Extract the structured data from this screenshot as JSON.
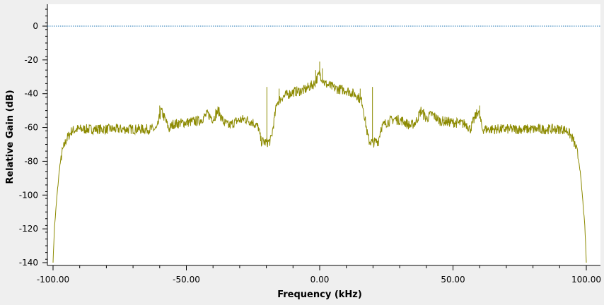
{
  "chart_data": {
    "type": "line",
    "title": "",
    "xlabel": "Frequency (kHz)",
    "ylabel": "Relative Gain (dB)",
    "xlim": [
      -100,
      100
    ],
    "ylim": [
      -140,
      13
    ],
    "x_ticks": [
      -100,
      -50,
      0,
      50,
      100
    ],
    "x_tick_labels": [
      "-100.00",
      "-50.00",
      "0.00",
      "50.00",
      "100.00"
    ],
    "y_ticks": [
      0,
      -20,
      -40,
      -60,
      -80,
      -100,
      -120,
      -140
    ],
    "y_tick_labels": [
      "0",
      "-20",
      "-40",
      "-60",
      "-80",
      "-100",
      "-120",
      "-140"
    ],
    "grid": false,
    "legend": "none",
    "reference_line": {
      "y": 0,
      "color": "#1f77b4",
      "style": "dotted"
    },
    "series": [
      {
        "color": "#8c8a00",
        "envelope": [
          [
            -100,
            -140
          ],
          [
            -99.5,
            -120
          ],
          [
            -98.5,
            -100
          ],
          [
            -97.5,
            -83
          ],
          [
            -96.5,
            -74
          ],
          [
            -95,
            -67
          ],
          [
            -93,
            -62
          ],
          [
            -91,
            -61
          ],
          [
            -85,
            -61
          ],
          [
            -75,
            -61
          ],
          [
            -65,
            -61
          ],
          [
            -61,
            -61
          ],
          [
            -59.5,
            -50
          ],
          [
            -58,
            -55
          ],
          [
            -56.5,
            -61
          ],
          [
            -55,
            -58
          ],
          [
            -50,
            -57
          ],
          [
            -45,
            -56
          ],
          [
            -42,
            -52
          ],
          [
            -40,
            -55
          ],
          [
            -38,
            -50
          ],
          [
            -36,
            -57
          ],
          [
            -34,
            -59
          ],
          [
            -31,
            -56
          ],
          [
            -28,
            -55
          ],
          [
            -25,
            -57
          ],
          [
            -23,
            -60
          ],
          [
            -22,
            -68
          ],
          [
            -20,
            -69
          ],
          [
            -18.5,
            -68
          ],
          [
            -18,
            -65
          ],
          [
            -16,
            -45
          ],
          [
            -14,
            -42
          ],
          [
            -10,
            -39
          ],
          [
            -6,
            -38
          ],
          [
            -2,
            -34
          ],
          [
            0,
            -28
          ],
          [
            2,
            -34
          ],
          [
            6,
            -37
          ],
          [
            10,
            -38
          ],
          [
            14,
            -41
          ],
          [
            16,
            -45
          ],
          [
            18,
            -65
          ],
          [
            18.5,
            -68
          ],
          [
            20,
            -69
          ],
          [
            22,
            -68
          ],
          [
            23,
            -60
          ],
          [
            25,
            -57
          ],
          [
            28,
            -55
          ],
          [
            31,
            -56
          ],
          [
            34,
            -59
          ],
          [
            36,
            -57
          ],
          [
            38,
            -50
          ],
          [
            40,
            -55
          ],
          [
            42,
            -52
          ],
          [
            45,
            -56
          ],
          [
            50,
            -57
          ],
          [
            55,
            -58
          ],
          [
            56.5,
            -61
          ],
          [
            58,
            -55
          ],
          [
            59.5,
            -50
          ],
          [
            61,
            -61
          ],
          [
            65,
            -61
          ],
          [
            75,
            -61
          ],
          [
            85,
            -61
          ],
          [
            91,
            -61
          ],
          [
            93,
            -62
          ],
          [
            95,
            -67
          ],
          [
            96.5,
            -74
          ],
          [
            97.5,
            -83
          ],
          [
            98.5,
            -100
          ],
          [
            99.5,
            -120
          ],
          [
            100,
            -140
          ]
        ],
        "spikes": [
          [
            -60,
            -47
          ],
          [
            -39,
            -49
          ],
          [
            -19.8,
            -36
          ],
          [
            -15.2,
            -37
          ],
          [
            -1.5,
            -26
          ],
          [
            0,
            -21
          ],
          [
            1,
            -25
          ],
          [
            15.2,
            -37
          ],
          [
            19.8,
            -36
          ],
          [
            39,
            -49
          ],
          [
            60,
            -47
          ]
        ],
        "noise_amplitude_db": 3
      }
    ]
  }
}
